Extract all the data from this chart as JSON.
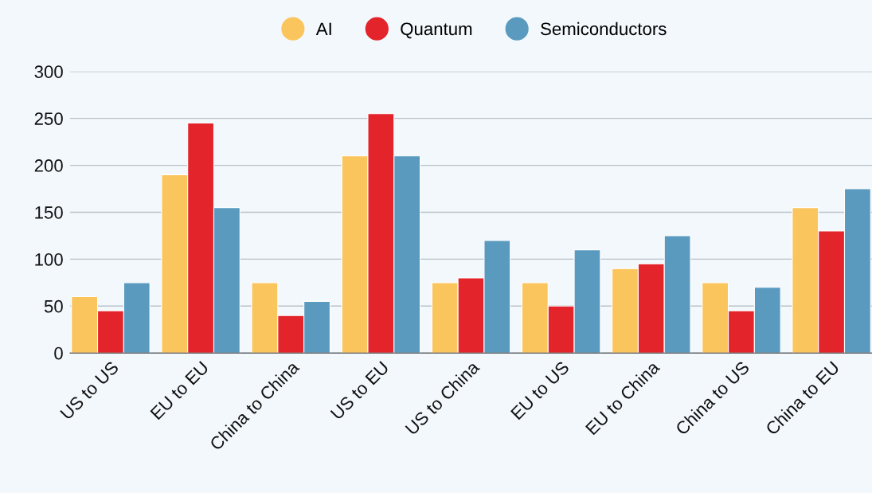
{
  "chart_data": {
    "type": "bar",
    "categories": [
      "US to US",
      "EU to EU",
      "China to China",
      "US to EU",
      "US to China",
      "EU to US",
      "EU to China",
      "China to US",
      "China to EU"
    ],
    "series": [
      {
        "name": "AI",
        "color": "#fbc55e",
        "values": [
          60,
          190,
          75,
          210,
          75,
          75,
          90,
          75,
          155
        ]
      },
      {
        "name": "Quantum",
        "color": "#e3242b",
        "values": [
          45,
          245,
          40,
          255,
          80,
          50,
          95,
          45,
          130
        ]
      },
      {
        "name": "Semiconductors",
        "color": "#5a9abf",
        "values": [
          75,
          155,
          55,
          210,
          120,
          110,
          125,
          70,
          175
        ]
      }
    ],
    "ylim": [
      0,
      300
    ],
    "yticks": [
      0,
      50,
      100,
      150,
      200,
      250,
      300
    ],
    "grid": "y",
    "legend": "top"
  }
}
